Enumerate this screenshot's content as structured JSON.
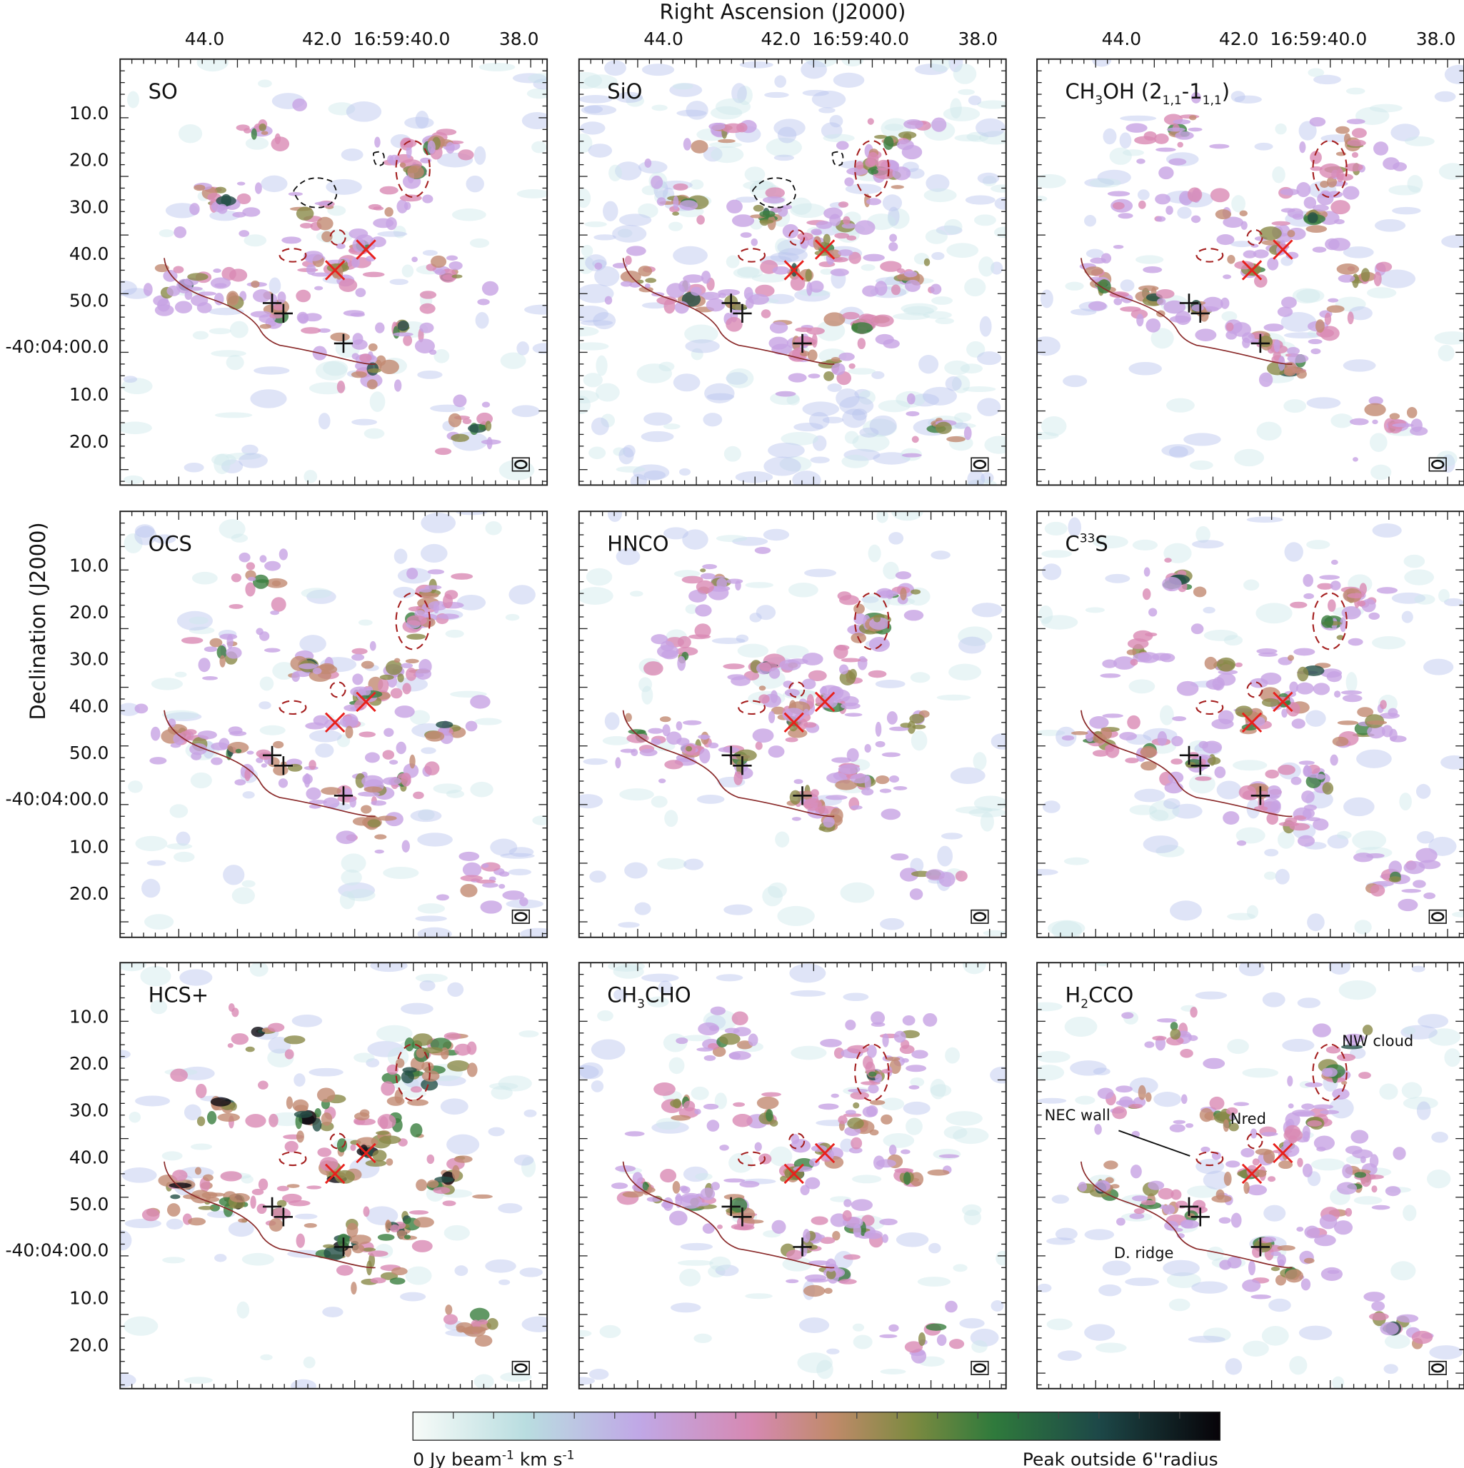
{
  "axes": {
    "x_title": "Right Ascension (J2000)",
    "y_title": "Declination (J2000)",
    "x_ticks": [
      "44.0",
      "42.0",
      "16:59:40.0",
      "38.0"
    ],
    "y_ticks": [
      "10.0",
      "20.0",
      "30.0",
      "40.0",
      "50.0",
      "-40:04:00.0",
      "10.0",
      "20.0"
    ]
  },
  "panels": [
    {
      "title": [
        "SO"
      ]
    },
    {
      "title": [
        "SiO"
      ]
    },
    {
      "title": [
        "CH",
        "3",
        "OH (2",
        "1,1",
        "-1",
        "1,1",
        ")"
      ]
    },
    {
      "title": [
        "OCS"
      ]
    },
    {
      "title": [
        "HNCO"
      ]
    },
    {
      "title": [
        "C",
        "33",
        "S"
      ]
    },
    {
      "title": [
        "HCS+"
      ]
    },
    {
      "title": [
        "CH",
        "3",
        "CHO"
      ]
    },
    {
      "title": [
        "H",
        "2",
        "CCO"
      ]
    }
  ],
  "annotations": {
    "nw_cloud": "NW cloud",
    "nec_wall": "NEC wall",
    "nred": "Nred",
    "d_ridge": "D. ridge"
  },
  "colorbar": {
    "min_label": [
      "0 Jy beam",
      "-1",
      " km s",
      "-1"
    ],
    "max_label": "Peak outside 6''radius"
  }
}
